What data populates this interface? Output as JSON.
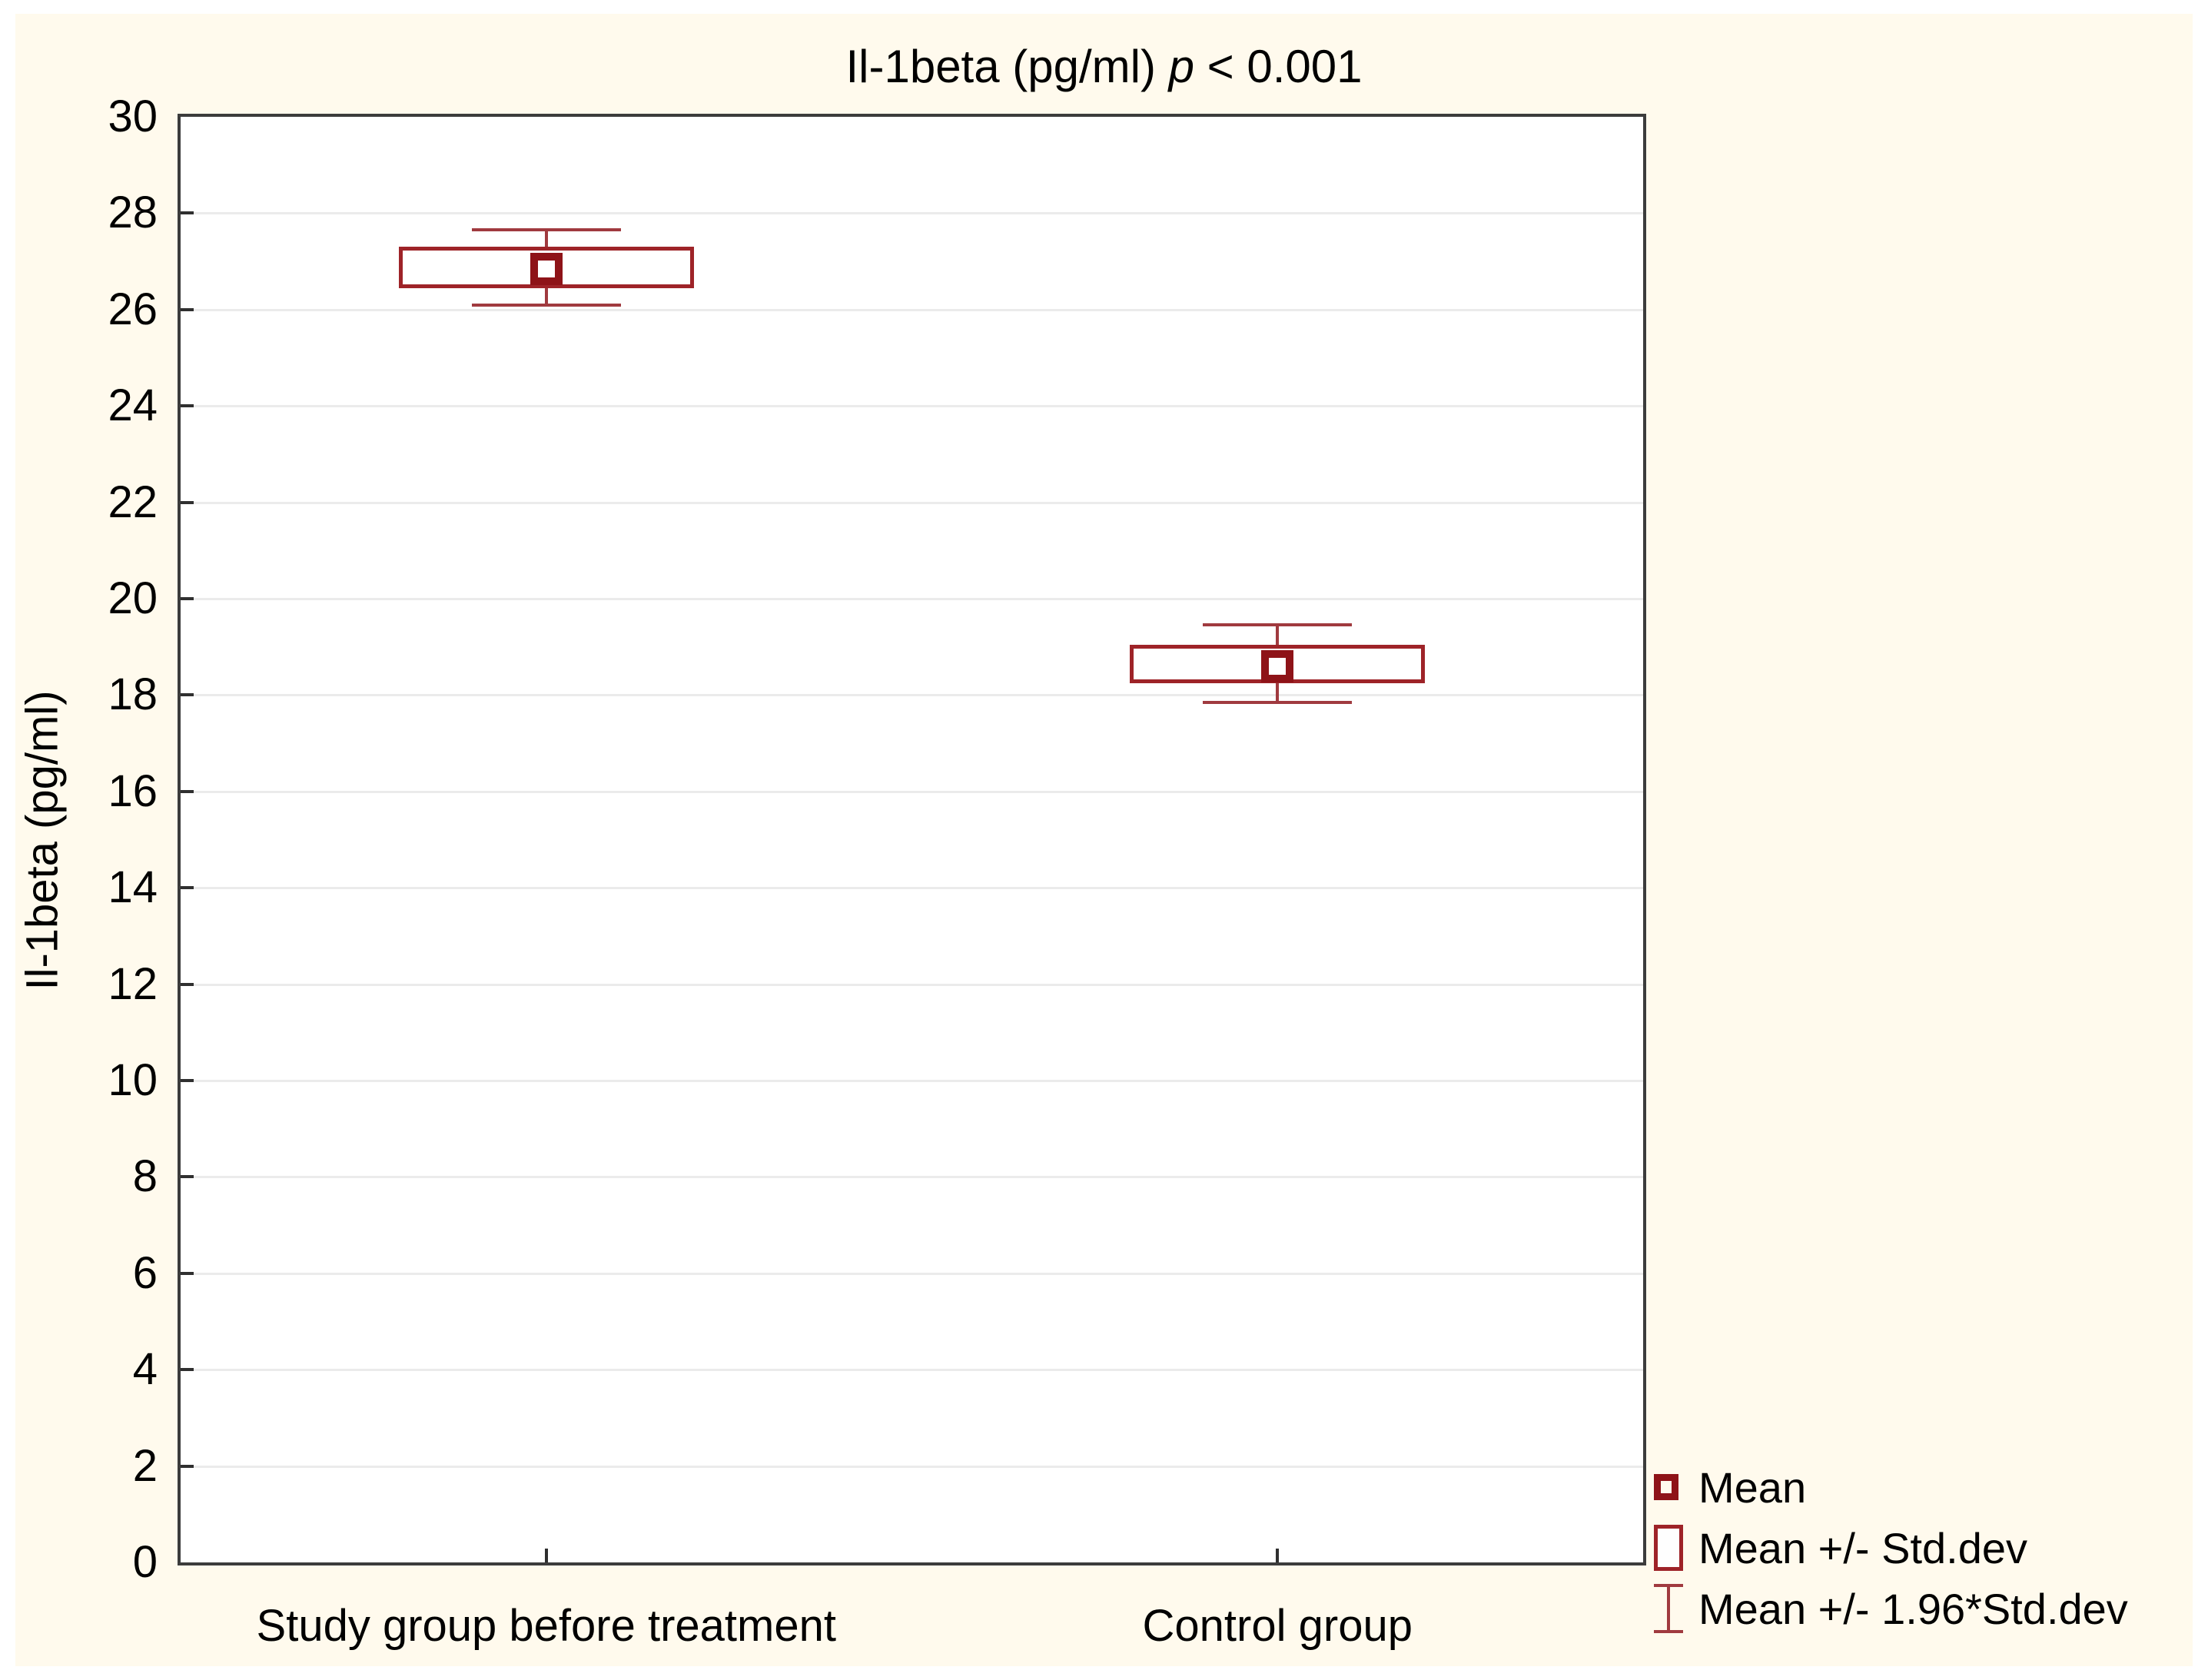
{
  "chart_data": {
    "type": "box",
    "title": "Il-1beta (pg/ml) p < 0.001",
    "title_prefix": "Il-1beta (pg/ml) ",
    "title_p": "p",
    "title_suffix": " < 0.001",
    "ylabel": "Il-1beta (pg/ml)",
    "ylim": [
      0,
      30
    ],
    "ytick_step": 2,
    "yticks": [
      0,
      2,
      4,
      6,
      8,
      10,
      12,
      14,
      16,
      18,
      20,
      22,
      24,
      26,
      28,
      30
    ],
    "grid": "horizontal",
    "legend_position": "bottom-right",
    "categories": [
      "Study group before treatment",
      "Control group"
    ],
    "groups": [
      {
        "label": "Study group before treatment",
        "mean": 26.85,
        "box_low": 26.45,
        "box_high": 27.3,
        "whisker_low": 26.1,
        "whisker_high": 27.65
      },
      {
        "label": "Control group",
        "mean": 18.6,
        "box_low": 18.25,
        "box_high": 19.05,
        "whisker_low": 17.85,
        "whisker_high": 19.45
      }
    ],
    "legend": [
      {
        "symbol": "mean-square-icon",
        "label": "Mean"
      },
      {
        "symbol": "std-dev-box-icon",
        "label": "Mean +/- Std.dev"
      },
      {
        "symbol": "whisker-icon",
        "label": "Mean +/- 1.96*Std.dev"
      }
    ],
    "colors": {
      "mean_marker": "#8e1318",
      "box_stroke": "#9e2328",
      "whisker_stroke": "#a03a3f",
      "grid_line": "#ebebeb",
      "axis_frame": "#3c3c3c",
      "panel_background": "#FFFAED",
      "plot_background": "#ffffff",
      "text": "#000000"
    }
  }
}
